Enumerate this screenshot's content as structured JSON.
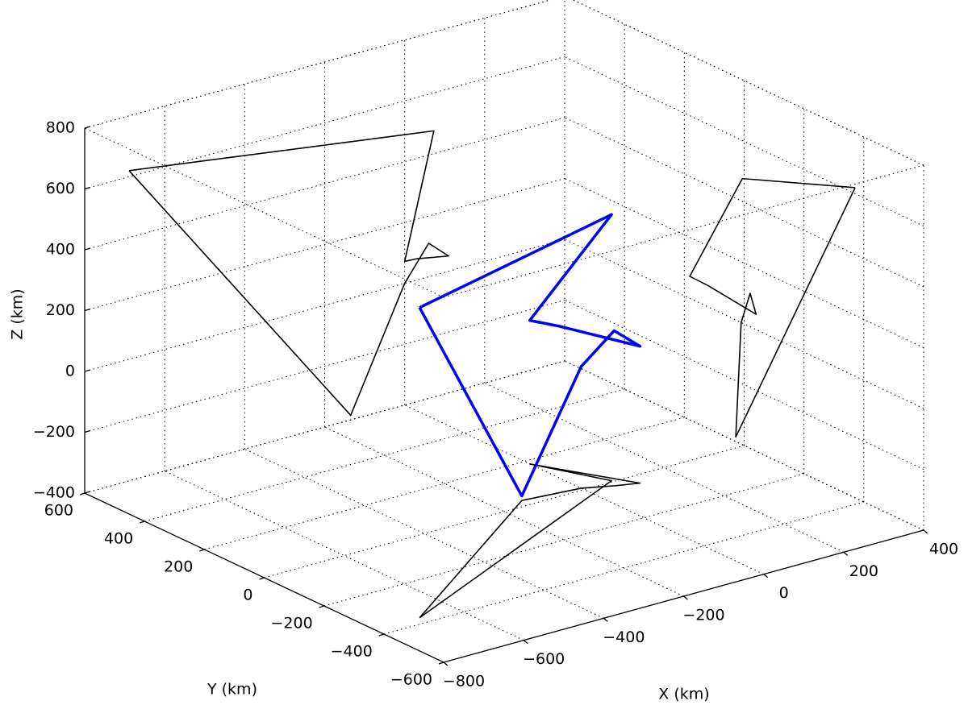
{
  "chart_data": {
    "type": "line3d",
    "xlabel": "X (km)",
    "ylabel": "Y (km)",
    "zlabel": "Z (km)",
    "xlim": [
      -800,
      400
    ],
    "ylim": [
      -600,
      600
    ],
    "zlim": [
      -400,
      800
    ],
    "xticks": [
      {
        "value": -800,
        "label": "−800"
      },
      {
        "value": -600,
        "label": "−600"
      },
      {
        "value": -400,
        "label": "−400"
      },
      {
        "value": -200,
        "label": "−200"
      },
      0,
      200,
      400
    ],
    "yticks": [
      {
        "value": -600,
        "label": "−600"
      },
      {
        "value": -400,
        "label": "−400"
      },
      {
        "value": -200,
        "label": "−200"
      },
      0,
      200,
      400,
      600
    ],
    "zticks": [
      {
        "value": -400,
        "label": "−400"
      },
      {
        "value": -200,
        "label": "−200"
      },
      0,
      200,
      400,
      600,
      800
    ],
    "grid": true,
    "projection_color": "#000000",
    "series": [
      {
        "color": "#0000ff",
        "x": [
          -689,
          73,
          0,
          30,
          110,
          60,
          0,
          -135,
          -689
        ],
        "y": [
          -371,
          6,
          182,
          120,
          -40,
          -20,
          10,
          28,
          -371
        ],
        "z": [
          620,
          475,
          72,
          70,
          50,
          110,
          0,
          -385,
          620
        ]
      }
    ]
  }
}
